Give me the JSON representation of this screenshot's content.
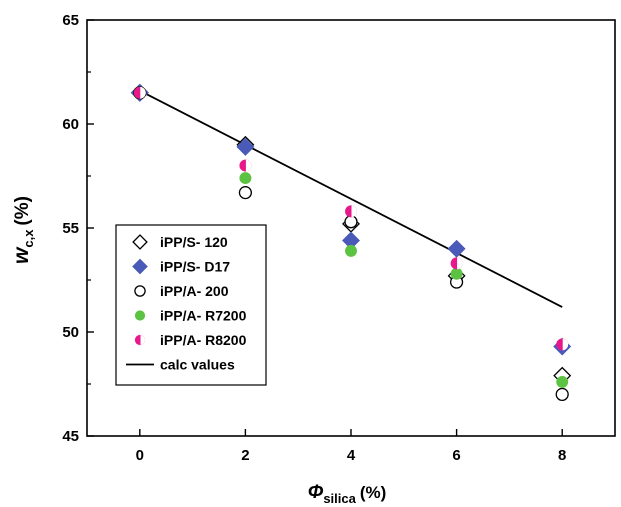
{
  "chart_data": {
    "type": "scatter",
    "title": "",
    "xlabel": {
      "main": "Φ",
      "sub": "silica",
      "unit": "(%)"
    },
    "ylabel": {
      "main": "w",
      "sub": "c,x",
      "unit": "(%)"
    },
    "xlim": [
      -1,
      9
    ],
    "ylim": [
      45,
      65
    ],
    "xticks": [
      0,
      2,
      4,
      6,
      8
    ],
    "yticks": [
      45,
      50,
      55,
      60,
      65
    ],
    "grid": false,
    "legend_position": "bottom-left",
    "series": [
      {
        "name": "iPP/S- 120",
        "marker": "open-diamond",
        "color": "#000000",
        "x": [
          0,
          2,
          4,
          6,
          8
        ],
        "y": [
          61.5,
          59.0,
          55.2,
          52.7,
          47.9
        ]
      },
      {
        "name": "iPP/S- D17",
        "marker": "filled-diamond",
        "color": "#4a5ab8",
        "x": [
          0,
          2,
          4,
          6,
          8
        ],
        "y": [
          61.5,
          58.9,
          54.4,
          54.0,
          49.3
        ]
      },
      {
        "name": "iPP/A- 200",
        "marker": "open-circle",
        "color": "#000000",
        "x": [
          0,
          2,
          4,
          6,
          8
        ],
        "y": [
          61.5,
          56.7,
          55.3,
          52.4,
          47.0
        ]
      },
      {
        "name": "iPP/A- R7200",
        "marker": "filled-circle",
        "color": "#5bc242",
        "x": [
          0,
          2,
          4,
          6,
          8
        ],
        "y": [
          61.5,
          57.4,
          53.9,
          52.8,
          47.6
        ]
      },
      {
        "name": "iPP/A- R8200",
        "marker": "half-circle",
        "color": "#e8178a",
        "x": [
          0,
          2,
          4,
          6,
          8
        ],
        "y": [
          61.5,
          58.0,
          55.8,
          53.3,
          49.4
        ]
      },
      {
        "name": "calc values",
        "marker": "line",
        "color": "#000000",
        "x": [
          0,
          8
        ],
        "y": [
          61.6,
          51.2
        ]
      }
    ]
  }
}
